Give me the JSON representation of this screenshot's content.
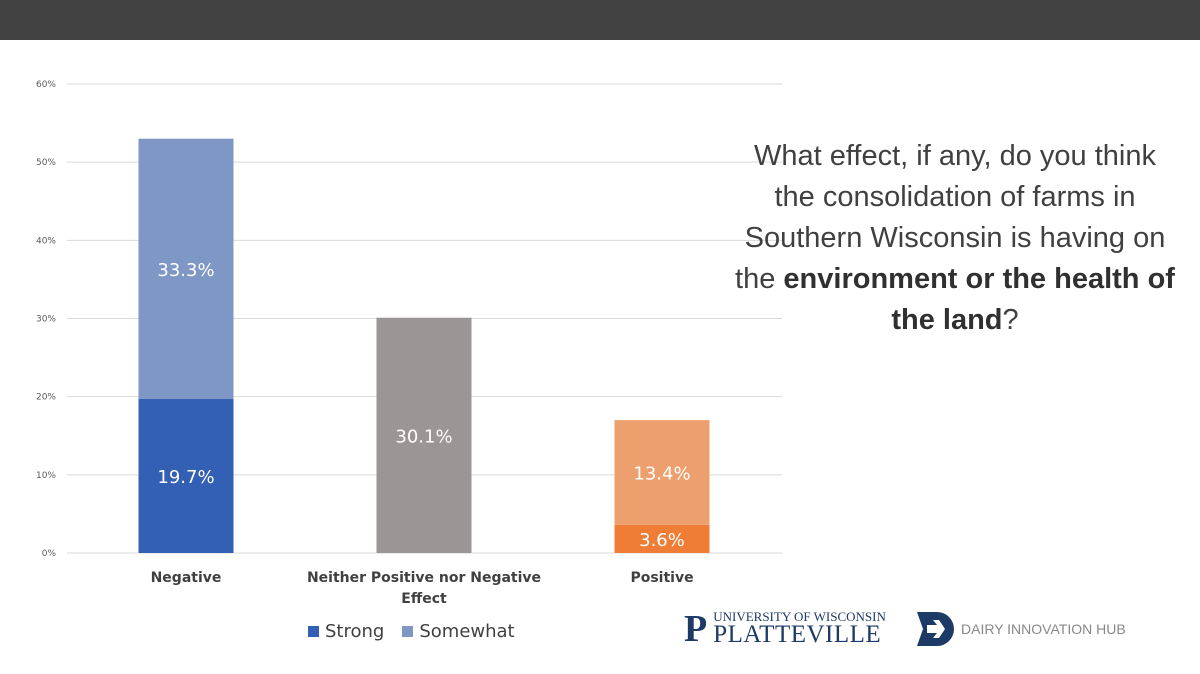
{
  "chart_data": {
    "type": "bar",
    "stacked": true,
    "categories": [
      "Negative",
      "Neither Positive nor Negative Effect",
      "Positive"
    ],
    "series": [
      {
        "name": "Strong",
        "values": [
          19.7,
          null,
          3.6
        ],
        "labels": [
          "19.7%",
          null,
          "3.6%"
        ]
      },
      {
        "name": "Somewhat",
        "values": [
          33.3,
          30.1,
          13.4
        ],
        "labels": [
          "33.3%",
          "30.1%",
          "13.4%"
        ]
      }
    ],
    "colors": {
      "Negative": [
        "#335fb5",
        "#7f97c4"
      ],
      "Neither Positive nor Negative Effect": [
        "#9a9695",
        "#9a9695"
      ],
      "Positive": [
        "#ef7d35",
        "#eda06e"
      ]
    },
    "legend_colors": {
      "Strong": "#335fb5",
      "Somewhat": "#7f97c4"
    },
    "ylim": [
      0,
      60
    ],
    "yticks": [
      "0%",
      "10%",
      "20%",
      "30%",
      "40%",
      "50%",
      "60%"
    ],
    "grid": true,
    "legend": "bottom",
    "xlabel": "",
    "ylabel": ""
  },
  "question": {
    "pre": "What effect, if any, do you think the consolidation of farms in Southern Wisconsin is having on the ",
    "bold": "environment or the health of the land",
    "post": "?"
  },
  "logos": {
    "uw_top": "UNIVERSITY OF WISCONSIN",
    "uw_bottom": "PLATTEVILLE",
    "hub": "DAIRY INNOVATION HUB"
  }
}
